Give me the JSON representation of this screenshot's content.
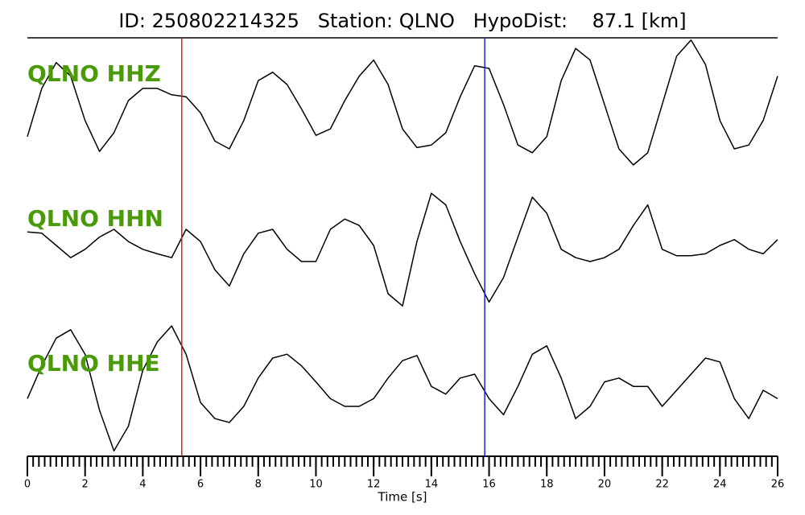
{
  "chart_data": {
    "type": "line",
    "title": "ID: 250802214325   Station: QLNO   HypoDist:    87.1 [km]",
    "xlabel": "Time [s]",
    "x": [
      0,
      0.5,
      1,
      1.5,
      2,
      2.5,
      3,
      3.5,
      4,
      4.5,
      5,
      5.5,
      6,
      6.5,
      7,
      7.5,
      8,
      8.5,
      9,
      9.5,
      10,
      10.5,
      11,
      11.5,
      12,
      12.5,
      13,
      13.5,
      14,
      14.5,
      15,
      15.5,
      16,
      16.5,
      17,
      17.5,
      18,
      18.5,
      19,
      19.5,
      20,
      20.5,
      21,
      21.5,
      22,
      22.5,
      23,
      23.5,
      24,
      24.5,
      25,
      25.5,
      26
    ],
    "series": [
      {
        "name": "QLNO HHZ",
        "color": "#000000",
        "values": [
          -0.56,
          0.19,
          0.59,
          0.38,
          -0.31,
          -0.79,
          -0.5,
          0,
          0.19,
          0.19,
          0.09,
          0.06,
          -0.19,
          -0.63,
          -0.75,
          -0.31,
          0.31,
          0.44,
          0.25,
          -0.13,
          -0.54,
          -0.44,
          0,
          0.38,
          0.63,
          0.25,
          -0.44,
          -0.73,
          -0.69,
          -0.5,
          0.06,
          0.54,
          0.5,
          -0.06,
          -0.69,
          -0.81,
          -0.56,
          0.31,
          0.81,
          0.63,
          -0.06,
          -0.75,
          -1.0,
          -0.81,
          -0.06,
          0.69,
          0.94,
          0.56,
          -0.31,
          -0.75,
          -0.69,
          -0.31,
          0.38
        ]
      },
      {
        "name": "QLNO HHN",
        "color": "#000000",
        "values": [
          0.21,
          0.19,
          0,
          -0.19,
          -0.06,
          0.13,
          0.25,
          0.06,
          -0.06,
          -0.13,
          -0.19,
          0.25,
          0.06,
          -0.38,
          -0.63,
          -0.13,
          0.19,
          0.25,
          -0.06,
          -0.25,
          -0.25,
          0.25,
          0.41,
          0.31,
          0,
          -0.75,
          -0.94,
          0.06,
          0.81,
          0.63,
          0.06,
          -0.44,
          -0.88,
          -0.5,
          0.13,
          0.75,
          0.5,
          -0.06,
          -0.19,
          -0.25,
          -0.19,
          -0.06,
          0.31,
          0.63,
          -0.06,
          -0.16,
          -0.16,
          -0.13,
          0,
          0.09,
          -0.06,
          -0.13,
          0.09
        ]
      },
      {
        "name": "QLNO HHE",
        "color": "#000000",
        "values": [
          -0.13,
          0.38,
          0.81,
          0.94,
          0.56,
          -0.31,
          -0.94,
          -0.56,
          0.31,
          0.75,
          1.0,
          0.56,
          -0.19,
          -0.44,
          -0.5,
          -0.25,
          0.19,
          0.5,
          0.56,
          0.38,
          0.13,
          -0.13,
          -0.25,
          -0.25,
          -0.13,
          0.19,
          0.46,
          0.54,
          0.06,
          -0.06,
          0.19,
          0.25,
          -0.13,
          -0.38,
          0.06,
          0.56,
          0.69,
          0.19,
          -0.44,
          -0.25,
          0.13,
          0.19,
          0.06,
          0.06,
          -0.25,
          0,
          0.25,
          0.5,
          0.44,
          -0.13,
          -0.44,
          0,
          -0.13
        ]
      }
    ],
    "label_color": "#4a9a0a",
    "markers": [
      {
        "x": 5.35,
        "color": "#e8141e"
      },
      {
        "x": 15.85,
        "color": "#1428e8"
      }
    ],
    "xlim": [
      0,
      26
    ],
    "xticks": [
      0,
      2,
      4,
      6,
      8,
      10,
      12,
      14,
      16,
      18,
      20,
      22,
      24,
      26
    ],
    "xminor_step": 0.2,
    "ylim": [
      -1,
      1
    ]
  }
}
